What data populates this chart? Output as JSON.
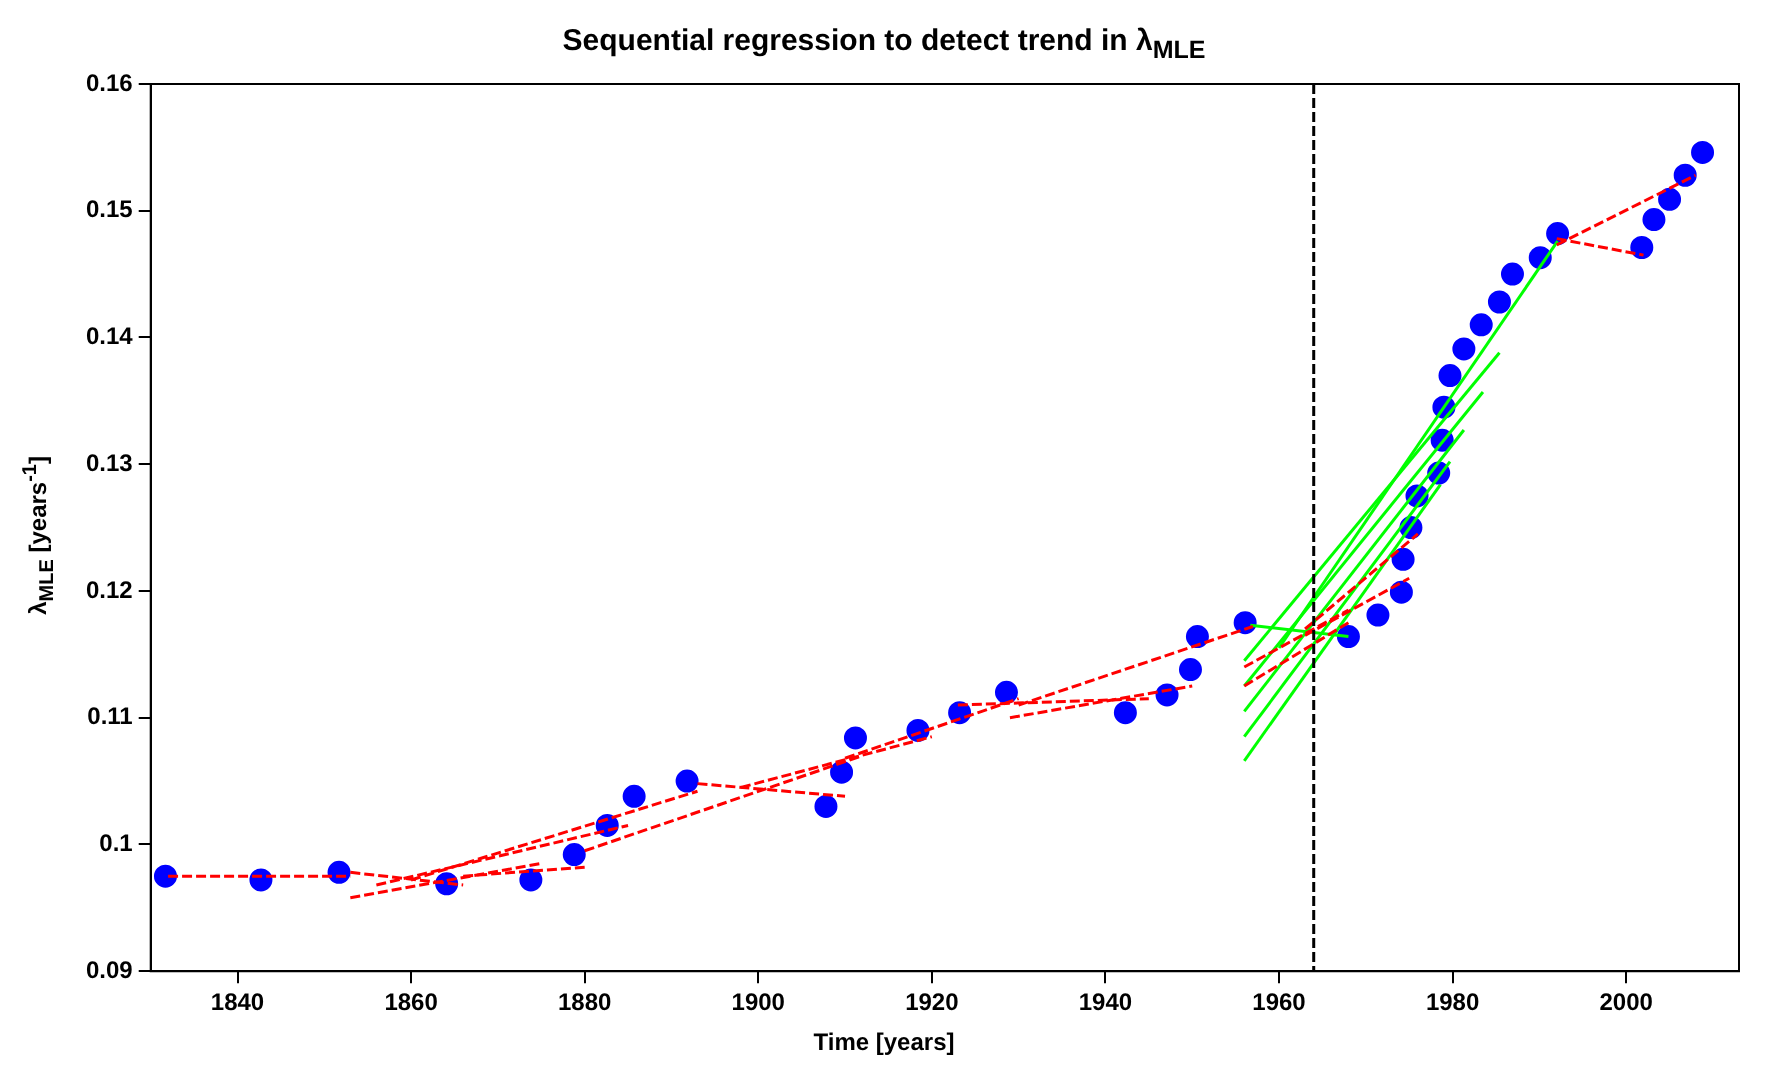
{
  "chart_data": {
    "type": "scatter",
    "title": "Sequential regression to detect trend in λ$_{MLE}$",
    "xlabel": "Time [years]",
    "ylabel": "λ$_{MLE}$ [years$^{-1}$]",
    "xlim": [
      1830,
      2013
    ],
    "xticks": [
      1840,
      1860,
      1880,
      1900,
      1920,
      1940,
      1960,
      1980,
      2000
    ],
    "ylim": [
      0.09,
      0.16
    ],
    "yticks": [
      0.09,
      0.1,
      0.11,
      0.12,
      0.13,
      0.14,
      0.15,
      0.16
    ],
    "grid": false,
    "legend": false,
    "ref_lines": [
      {
        "axis": "x",
        "value": 1964,
        "color": "#000000",
        "line_style": "dashed"
      }
    ],
    "series": [
      {
        "type": "scatter",
        "color": "#0000ff",
        "marker": "circle",
        "x": [
          1831.7,
          1842.7,
          1851.7,
          1864.1,
          1873.8,
          1878.8,
          1882.6,
          1885.7,
          1891.8,
          1907.8,
          1909.6,
          1911.2,
          1918.4,
          1923.2,
          1928.6,
          1942.3,
          1947.1,
          1949.8,
          1950.6,
          1956.1,
          1968.0,
          1971.4,
          1974.1,
          1974.3,
          1975.2,
          1975.9,
          1978.4,
          1978.8,
          1979.0,
          1979.7,
          1981.3,
          1983.3,
          1985.4,
          1986.9,
          1990.1,
          1992.1,
          2001.8,
          2003.2,
          2005.0,
          2006.8,
          2008.8
        ],
        "values": [
          0.0975,
          0.0972,
          0.0978,
          0.0969,
          0.0972,
          0.0992,
          0.1015,
          0.1038,
          0.105,
          0.103,
          0.1057,
          0.1084,
          0.109,
          0.1104,
          0.112,
          0.1104,
          0.1118,
          0.1138,
          0.1164,
          0.1175,
          0.1164,
          0.1181,
          0.1199,
          0.1225,
          0.125,
          0.1275,
          0.1293,
          0.1319,
          0.1345,
          0.137,
          0.1391,
          0.141,
          0.1428,
          0.145,
          0.1463,
          0.1482,
          0.1471,
          0.1493,
          0.1509,
          0.1528,
          0.1546
        ]
      },
      {
        "type": "line",
        "color": "#ff0000",
        "line_style": "dashed",
        "marker": "none",
        "x": [
          1832,
          1853
        ],
        "values": [
          0.0975,
          0.0975
        ]
      },
      {
        "type": "line",
        "color": "#ff0000",
        "line_style": "dashed",
        "marker": "none",
        "x": [
          1853,
          1875
        ],
        "values": [
          0.0958,
          0.0985
        ]
      },
      {
        "type": "line",
        "color": "#ff0000",
        "line_style": "dashed",
        "marker": "none",
        "x": [
          1853,
          1866
        ],
        "values": [
          0.0978,
          0.0968
        ]
      },
      {
        "type": "line",
        "color": "#ff0000",
        "line_style": "dashed",
        "marker": "none",
        "x": [
          1856,
          1885
        ],
        "values": [
          0.0968,
          0.1015
        ]
      },
      {
        "type": "line",
        "color": "#ff0000",
        "line_style": "dashed",
        "marker": "none",
        "x": [
          1860,
          1893
        ],
        "values": [
          0.0972,
          0.1042
        ]
      },
      {
        "type": "line",
        "color": "#ff0000",
        "line_style": "dashed",
        "marker": "none",
        "x": [
          1866,
          1880
        ],
        "values": [
          0.0975,
          0.0982
        ]
      },
      {
        "type": "line",
        "color": "#ff0000",
        "line_style": "dashed",
        "marker": "none",
        "x": [
          1880,
          1912
        ],
        "values": [
          0.0995,
          0.107
        ]
      },
      {
        "type": "line",
        "color": "#ff0000",
        "line_style": "dashed",
        "marker": "none",
        "x": [
          1893,
          1910
        ],
        "values": [
          0.1048,
          0.1038
        ]
      },
      {
        "type": "line",
        "color": "#ff0000",
        "line_style": "dashed",
        "marker": "none",
        "x": [
          1898,
          1920
        ],
        "values": [
          0.1045,
          0.1085
        ]
      },
      {
        "type": "line",
        "color": "#ff0000",
        "line_style": "dashed",
        "marker": "none",
        "x": [
          1910,
          1930
        ],
        "values": [
          0.1068,
          0.1115
        ]
      },
      {
        "type": "line",
        "color": "#ff0000",
        "line_style": "dashed",
        "marker": "none",
        "x": [
          1923,
          1945
        ],
        "values": [
          0.111,
          0.1115
        ]
      },
      {
        "type": "line",
        "color": "#ff0000",
        "line_style": "dashed",
        "marker": "none",
        "x": [
          1929,
          1950
        ],
        "values": [
          0.11,
          0.1125
        ]
      },
      {
        "type": "line",
        "color": "#ff0000",
        "line_style": "dashed",
        "marker": "none",
        "x": [
          1930,
          1957
        ],
        "values": [
          0.111,
          0.1172
        ]
      },
      {
        "type": "line",
        "color": "#ff0000",
        "line_style": "dashed",
        "marker": "none",
        "x": [
          1956,
          1968
        ],
        "values": [
          0.114,
          0.1185
        ]
      },
      {
        "type": "line",
        "color": "#ff0000",
        "line_style": "dashed",
        "marker": "none",
        "x": [
          1956,
          1968
        ],
        "values": [
          0.1125,
          0.1175
        ]
      },
      {
        "type": "line",
        "color": "#ff0000",
        "line_style": "dashed",
        "marker": "none",
        "x": [
          1963,
          1976
        ],
        "values": [
          0.117,
          0.1245
        ]
      },
      {
        "type": "line",
        "color": "#ff0000",
        "line_style": "dashed",
        "marker": "none",
        "x": [
          1963,
          1975
        ],
        "values": [
          0.1165,
          0.121
        ]
      },
      {
        "type": "line",
        "color": "#ff0000",
        "line_style": "dashed",
        "marker": "none",
        "x": [
          1992,
          2008
        ],
        "values": [
          0.1473,
          0.1528
        ]
      },
      {
        "type": "line",
        "color": "#ff0000",
        "line_style": "dashed",
        "marker": "none",
        "x": [
          1992,
          2002
        ],
        "values": [
          0.1478,
          0.1465
        ]
      },
      {
        "type": "line",
        "color": "#00ff00",
        "line_style": "solid",
        "marker": "none",
        "x": [
          1956.7,
          1968
        ],
        "values": [
          0.1173,
          0.1164
        ]
      },
      {
        "type": "line",
        "color": "#00ff00",
        "line_style": "solid",
        "marker": "none",
        "x": [
          1956,
          1978.6
        ],
        "values": [
          0.1066,
          0.1284
        ]
      },
      {
        "type": "line",
        "color": "#00ff00",
        "line_style": "solid",
        "marker": "none",
        "x": [
          1956,
          1979.7
        ],
        "values": [
          0.1085,
          0.1302
        ]
      },
      {
        "type": "line",
        "color": "#00ff00",
        "line_style": "solid",
        "marker": "none",
        "x": [
          1956,
          1981.3
        ],
        "values": [
          0.1105,
          0.1327
        ]
      },
      {
        "type": "line",
        "color": "#00ff00",
        "line_style": "solid",
        "marker": "none",
        "x": [
          1956,
          1983.5
        ],
        "values": [
          0.1125,
          0.1357
        ]
      },
      {
        "type": "line",
        "color": "#00ff00",
        "line_style": "solid",
        "marker": "none",
        "x": [
          1956,
          1985.4
        ],
        "values": [
          0.1145,
          0.1388
        ]
      },
      {
        "type": "line",
        "color": "#00ff00",
        "line_style": "solid",
        "marker": "none",
        "x": [
          1960,
          1992.1
        ],
        "values": [
          0.1155,
          0.1476
        ]
      }
    ]
  }
}
